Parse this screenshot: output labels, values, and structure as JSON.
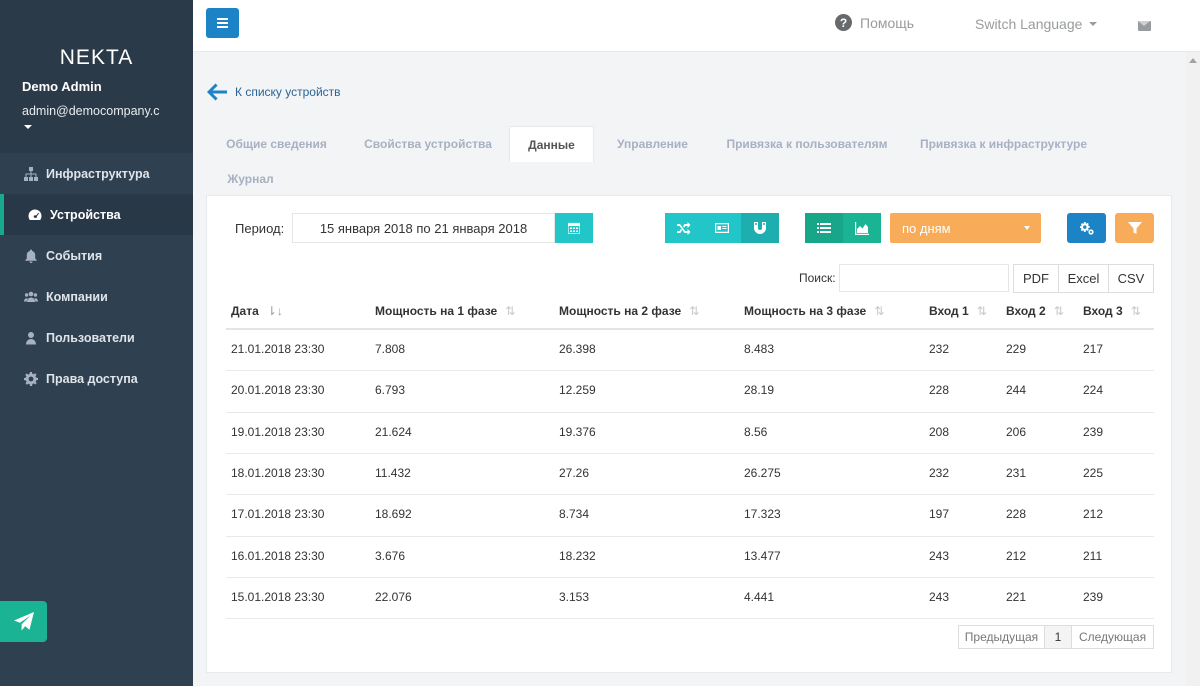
{
  "sidebar": {
    "brand": "NEKTA",
    "user_name": "Demo Admin",
    "user_email": "admin@democompany.com",
    "items": [
      {
        "label": "Инфраструктура",
        "icon": "sitemap-icon"
      },
      {
        "label": "Устройства",
        "icon": "dashboard-icon",
        "active": true
      },
      {
        "label": "События",
        "icon": "bell-icon"
      },
      {
        "label": "Компании",
        "icon": "users-icon"
      },
      {
        "label": "Пользователи",
        "icon": "user-icon"
      },
      {
        "label": "Права доступа",
        "icon": "gear-icon"
      }
    ]
  },
  "topbar": {
    "help_label": "Помощь",
    "language_label": "Switch Language"
  },
  "back_link": "К списку устройств",
  "tabs": [
    {
      "label": "Общие сведения"
    },
    {
      "label": "Свойства устройства"
    },
    {
      "label": "Данные",
      "active": true
    },
    {
      "label": "Управление"
    },
    {
      "label": "Привязка к пользователям"
    },
    {
      "label": "Привязка к инфраструктуре"
    },
    {
      "label": "Журнал"
    }
  ],
  "filter": {
    "period_label": "Период:",
    "period_value": "15 января 2018 по 21 января 2018",
    "group_value": "по дням"
  },
  "search_label": "Поиск:",
  "export_buttons": [
    "PDF",
    "Excel",
    "CSV"
  ],
  "table": {
    "headers": [
      "Дата",
      "Мощность на 1 фазе",
      "Мощность на 2 фазе",
      "Мощность на 3 фазе",
      "Вход 1",
      "Вход 2",
      "Вход 3"
    ],
    "rows": [
      [
        "21.01.2018 23:30",
        "7.808",
        "26.398",
        "8.483",
        "232",
        "229",
        "217"
      ],
      [
        "20.01.2018 23:30",
        "6.793",
        "12.259",
        "28.19",
        "228",
        "244",
        "224"
      ],
      [
        "19.01.2018 23:30",
        "21.624",
        "19.376",
        "8.56",
        "208",
        "206",
        "239"
      ],
      [
        "18.01.2018 23:30",
        "11.432",
        "27.26",
        "26.275",
        "232",
        "231",
        "225"
      ],
      [
        "17.01.2018 23:30",
        "18.692",
        "8.734",
        "17.323",
        "197",
        "228",
        "212"
      ],
      [
        "16.01.2018 23:30",
        "3.676",
        "18.232",
        "13.477",
        "243",
        "212",
        "211"
      ],
      [
        "15.01.2018 23:30",
        "22.076",
        "3.153",
        "4.441",
        "243",
        "221",
        "239"
      ]
    ]
  },
  "pagination": {
    "prev_label": "Предыдущая",
    "current_page": "1",
    "next_label": "Следующая"
  },
  "colors": {
    "sidebar_bg": "#2f4050",
    "accent_green": "#1ab394",
    "accent_teal": "#23c6c8",
    "accent_blue": "#1c84c6",
    "accent_orange": "#f8ac59"
  }
}
